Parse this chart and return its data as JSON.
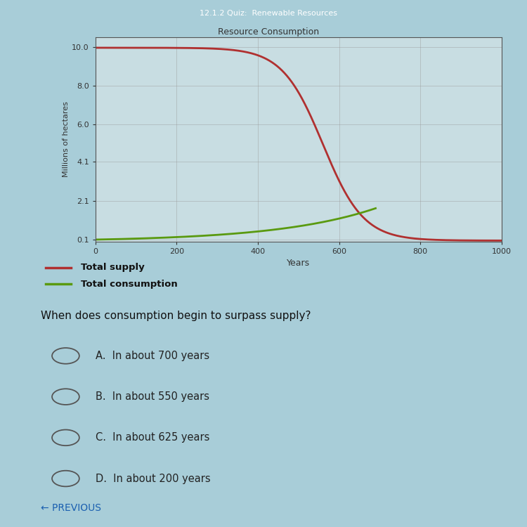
{
  "title": "Resource Consumption",
  "xlabel": "Years",
  "ylabel": "Millions of hectares",
  "x_ticks": [
    0,
    200,
    400,
    600,
    800,
    1000
  ],
  "y_ticks": [
    0.1,
    2.1,
    4.1,
    6.0,
    8.0,
    10
  ],
  "xlim": [
    0,
    1000
  ],
  "ylim": [
    0.0,
    10.5
  ],
  "supply_color": "#b03030",
  "consumption_color": "#5a9a10",
  "background_color": "#a8cdd8",
  "plot_bg_color": "#c8dde2",
  "grid_color": "#999999",
  "supply_label": "Total supply",
  "consumption_label": "Total consumption",
  "question": "When does consumption begin to surpass supply?",
  "options": [
    "A.  In about 700 years",
    "B.  In about 550 years",
    "C.  In about 625 years",
    "D.  In about 200 years"
  ],
  "previous_text": "← PREVIOUS",
  "header_text": "12.1.2 Quiz:  Renewable Resources",
  "chart_title": "Resource Consumption"
}
